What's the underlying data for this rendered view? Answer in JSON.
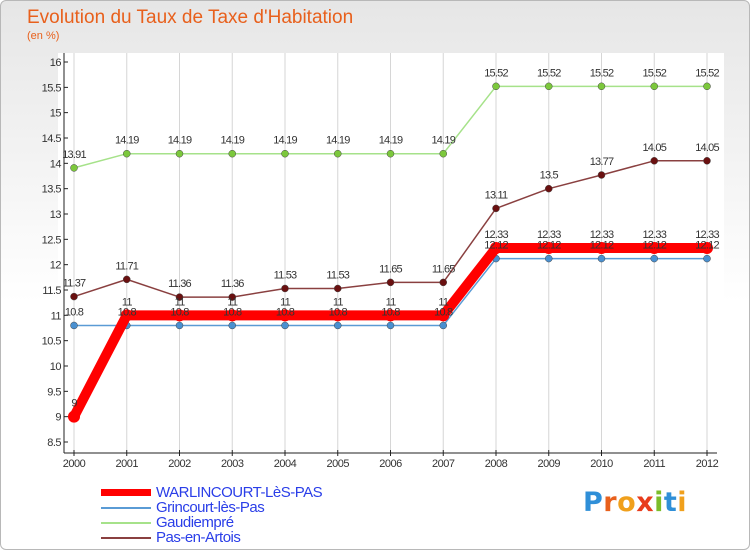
{
  "title": "Evolution du Taux de Taxe d'Habitation",
  "subtitle": "(en %)",
  "brand": {
    "letters": [
      "P",
      "r",
      "o",
      "x",
      "i",
      "t",
      "i"
    ],
    "colors": [
      "#2f8fd8",
      "#e8601c",
      "#f0a01c",
      "#e83c1c",
      "#7cbd2a",
      "#2f8fd8",
      "#f0a01c"
    ]
  },
  "chart_data": {
    "type": "line",
    "title": "Evolution du Taux de Taxe d'Habitation",
    "ylabel": "(en %)",
    "xlabel": "",
    "ylim": [
      8.5,
      16
    ],
    "yticks": [
      "8.5",
      "9",
      "9.5",
      "10",
      "10.5",
      "11",
      "11.5",
      "12",
      "12.5",
      "13",
      "13.5",
      "14",
      "14.5",
      "15",
      "15.5",
      "16"
    ],
    "x": [
      "2000",
      "2001",
      "2002",
      "2003",
      "2004",
      "2005",
      "2006",
      "2007",
      "2008",
      "2009",
      "2010",
      "2011",
      "2012"
    ],
    "series": [
      {
        "name": "Grincourt-lès-Pas",
        "color": "#5a9bd5",
        "marker": "#4a90d0",
        "values": [
          10.8,
          10.8,
          10.8,
          10.8,
          10.8,
          10.8,
          10.8,
          10.8,
          12.12,
          12.12,
          12.12,
          12.12,
          12.12
        ],
        "labels": [
          "10.8",
          "10.8",
          "10.8",
          "10.8",
          "10.8",
          "10.8",
          "10.8",
          "10.8",
          "12.12",
          "12.12",
          "12.12",
          "12.12",
          "12.12"
        ]
      },
      {
        "name": "Gaudiempré",
        "color": "#a6e28a",
        "marker": "#7cc83c",
        "values": [
          13.91,
          14.19,
          14.19,
          14.19,
          14.19,
          14.19,
          14.19,
          14.19,
          15.52,
          15.52,
          15.52,
          15.52,
          15.52
        ],
        "labels": [
          "13.91",
          "14.19",
          "14.19",
          "14.19",
          "14.19",
          "14.19",
          "14.19",
          "14.19",
          "15.52",
          "15.52",
          "15.52",
          "15.52",
          "15.52"
        ]
      },
      {
        "name": "Pas-en-Artois",
        "color": "#8a4040",
        "marker": "#6a1010",
        "values": [
          11.37,
          11.71,
          11.36,
          11.36,
          11.53,
          11.53,
          11.65,
          11.65,
          13.11,
          13.5,
          13.77,
          14.05,
          14.05
        ],
        "labels": [
          "11.37",
          "11.71",
          "11.36",
          "11.36",
          "11.53",
          "11.53",
          "11.65",
          "11.65",
          "13.11",
          "13.5",
          "13.77",
          "14.05",
          "14.05"
        ]
      },
      {
        "name": "WARLINCOURT-LèS-PAS",
        "color": "#ff0000",
        "marker": "#ff0000",
        "thick": true,
        "values": [
          9.0,
          11.0,
          11.0,
          11.0,
          11.0,
          11.0,
          11.0,
          11.0,
          12.33,
          12.33,
          12.33,
          12.33,
          12.33
        ],
        "labels": [
          "9",
          "11",
          "11",
          "11",
          "11",
          "11",
          "11",
          "11",
          "12.33",
          "12.33",
          "12.33",
          "12.33",
          "12.33"
        ]
      }
    ],
    "legend": [
      {
        "name": "WARLINCOURT-LèS-PAS",
        "color": "#ff0000",
        "thick": true
      },
      {
        "name": "Grincourt-lès-Pas",
        "color": "#5a9bd5"
      },
      {
        "name": "Gaudiempré",
        "color": "#a6e28a"
      },
      {
        "name": "Pas-en-Artois",
        "color": "#8a4040"
      }
    ]
  }
}
